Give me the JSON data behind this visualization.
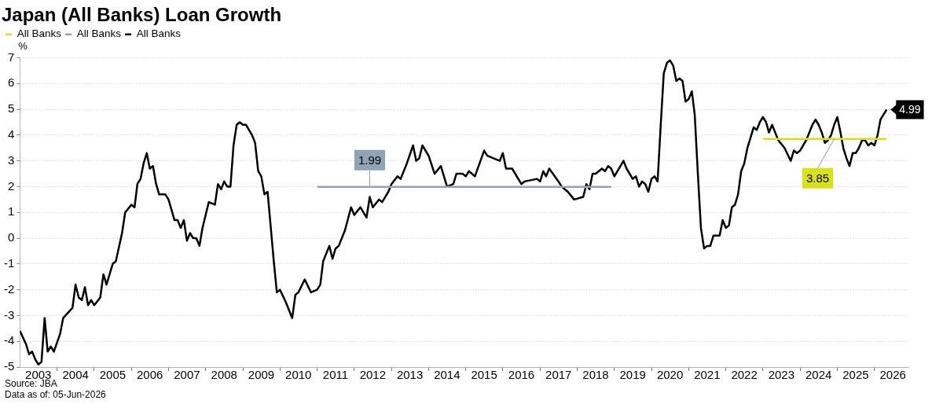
{
  "chart_data": {
    "type": "line",
    "title": "Japan (All Banks) Loan Growth",
    "ylabel": "%",
    "legend": "top left",
    "grid": "y",
    "xlim": [
      "2003-01-01",
      "2026-12-01"
    ],
    "xticks": [
      {
        "value": "2003-07-01",
        "label": "2003"
      },
      {
        "value": "2004-01-01",
        "label": null
      },
      {
        "value": "2004-07-01",
        "label": "2004"
      },
      {
        "value": "2005-01-01",
        "label": null
      },
      {
        "value": "2005-07-01",
        "label": "2005"
      },
      {
        "value": "2006-01-01",
        "label": null
      },
      {
        "value": "2006-07-01",
        "label": "2006"
      },
      {
        "value": "2007-01-01",
        "label": null
      },
      {
        "value": "2007-07-01",
        "label": "2007"
      },
      {
        "value": "2008-01-01",
        "label": null
      },
      {
        "value": "2008-07-01",
        "label": "2008"
      },
      {
        "value": "2009-01-01",
        "label": null
      },
      {
        "value": "2009-07-01",
        "label": "2009"
      },
      {
        "value": "2010-01-01",
        "label": null
      },
      {
        "value": "2010-07-01",
        "label": "2010"
      },
      {
        "value": "2011-01-01",
        "label": null
      },
      {
        "value": "2011-07-01",
        "label": "2011"
      },
      {
        "value": "2012-01-01",
        "label": null
      },
      {
        "value": "2012-07-01",
        "label": "2012"
      },
      {
        "value": "2013-01-01",
        "label": null
      },
      {
        "value": "2013-07-01",
        "label": "2013"
      },
      {
        "value": "2014-01-01",
        "label": null
      },
      {
        "value": "2014-07-01",
        "label": "2014"
      },
      {
        "value": "2015-01-01",
        "label": null
      },
      {
        "value": "2015-07-01",
        "label": "2015"
      },
      {
        "value": "2016-01-01",
        "label": null
      },
      {
        "value": "2016-07-01",
        "label": "2016"
      },
      {
        "value": "2017-01-01",
        "label": null
      },
      {
        "value": "2017-07-01",
        "label": "2017"
      },
      {
        "value": "2018-01-01",
        "label": null
      },
      {
        "value": "2018-07-01",
        "label": "2018"
      },
      {
        "value": "2019-01-01",
        "label": null
      },
      {
        "value": "2019-07-01",
        "label": "2019"
      },
      {
        "value": "2020-01-01",
        "label": null
      },
      {
        "value": "2020-07-01",
        "label": "2020"
      },
      {
        "value": "2021-01-01",
        "label": null
      },
      {
        "value": "2021-07-01",
        "label": "2021"
      },
      {
        "value": "2022-01-01",
        "label": null
      },
      {
        "value": "2022-07-01",
        "label": "2022"
      },
      {
        "value": "2023-01-01",
        "label": null
      },
      {
        "value": "2023-07-01",
        "label": "2023"
      },
      {
        "value": "2024-01-01",
        "label": null
      },
      {
        "value": "2024-07-01",
        "label": "2024"
      },
      {
        "value": "2025-01-01",
        "label": null
      },
      {
        "value": "2025-07-01",
        "label": "2025"
      },
      {
        "value": "2026-01-01",
        "label": null
      },
      {
        "value": "2026-07-01",
        "label": "2026"
      }
    ],
    "ylim": [
      -5,
      7
    ],
    "yticks": [
      -5,
      -4,
      -3,
      -2,
      -1,
      0,
      1,
      2,
      3,
      4,
      5,
      6,
      7
    ],
    "series": [
      {
        "name": "All Banks",
        "color": "#d8e21a",
        "x": [
          "2023-01",
          "2024-12",
          "2026-05"
        ],
        "values": [
          3.85,
          3.85,
          3.85
        ],
        "value_labels": [
          null,
          "3.85",
          null
        ]
      },
      {
        "name": "All Banks",
        "color": "#8fa5b6",
        "x": [
          "2011-01",
          "2012-06",
          "2018-12"
        ],
        "values": [
          1.99,
          1.99,
          1.99
        ],
        "value_labels": [
          null,
          "1.99",
          null
        ]
      },
      {
        "name": "All Banks",
        "color": "#000000",
        "x": [
          "2003-01",
          "2003-03",
          "2003-04",
          "2003-05",
          "2003-06",
          "2003-07",
          "2003-08",
          "2003-09",
          "2003-10",
          "2003-11",
          "2003-12",
          "2004-02",
          "2004-03",
          "2004-06",
          "2004-07",
          "2004-08",
          "2004-09",
          "2004-10",
          "2004-11",
          "2004-12",
          "2005-01",
          "2005-03",
          "2005-04",
          "2005-05",
          "2005-06",
          "2005-07",
          "2005-08",
          "2005-10",
          "2005-11",
          "2006-01",
          "2006-02",
          "2006-03",
          "2006-04",
          "2006-05",
          "2006-06",
          "2006-07",
          "2006-08",
          "2006-09",
          "2006-10",
          "2006-12",
          "2007-01",
          "2007-03",
          "2007-04",
          "2007-05",
          "2007-06",
          "2007-07",
          "2007-08",
          "2007-09",
          "2007-10",
          "2007-11",
          "2007-12",
          "2008-01",
          "2008-02",
          "2008-04",
          "2008-05",
          "2008-06",
          "2008-07",
          "2008-08",
          "2008-09",
          "2008-10",
          "2008-11",
          "2008-12",
          "2009-01",
          "2009-02",
          "2009-04",
          "2009-05",
          "2009-06",
          "2009-07",
          "2009-08",
          "2009-09",
          "2009-11",
          "2009-12",
          "2010-01",
          "2010-03",
          "2010-05",
          "2010-06",
          "2010-07",
          "2010-09",
          "2010-11",
          "2011-01",
          "2011-02",
          "2011-03",
          "2011-05",
          "2011-06",
          "2011-07",
          "2011-08",
          "2011-10",
          "2011-12",
          "2012-01",
          "2012-03",
          "2012-05",
          "2012-06",
          "2012-07",
          "2012-09",
          "2012-10",
          "2012-12",
          "2013-01",
          "2013-03",
          "2013-04",
          "2013-06",
          "2013-08",
          "2013-09",
          "2013-10",
          "2013-11",
          "2014-01",
          "2014-03",
          "2014-05",
          "2014-07",
          "2014-09",
          "2014-10",
          "2014-12",
          "2015-01",
          "2015-02",
          "2015-04",
          "2015-07",
          "2015-08",
          "2015-12",
          "2016-01",
          "2016-02",
          "2016-04",
          "2016-07",
          "2016-08",
          "2016-12",
          "2017-01",
          "2017-02",
          "2017-03",
          "2017-04",
          "2017-07",
          "2017-08",
          "2017-10",
          "2017-12",
          "2018-03",
          "2018-04",
          "2018-05",
          "2018-06",
          "2018-07",
          "2018-09",
          "2018-10",
          "2018-11",
          "2018-12",
          "2019-01",
          "2019-04",
          "2019-05",
          "2019-07",
          "2019-08",
          "2019-09",
          "2019-10",
          "2019-11",
          "2019-12",
          "2020-01",
          "2020-02",
          "2020-03",
          "2020-04",
          "2020-05",
          "2020-06",
          "2020-07",
          "2020-08",
          "2020-09",
          "2020-10",
          "2020-11",
          "2020-12",
          "2021-01",
          "2021-02",
          "2021-03",
          "2021-04",
          "2021-05",
          "2021-06",
          "2021-07",
          "2021-08",
          "2021-09",
          "2021-11",
          "2021-12",
          "2022-01",
          "2022-02",
          "2022-03",
          "2022-04",
          "2022-05",
          "2022-06",
          "2022-07",
          "2022-08",
          "2022-09",
          "2022-10",
          "2022-11",
          "2022-12",
          "2023-01",
          "2023-02",
          "2023-03",
          "2023-04",
          "2023-05",
          "2023-06",
          "2023-08",
          "2023-10",
          "2023-11",
          "2023-12",
          "2024-01",
          "2024-03",
          "2024-04",
          "2024-05",
          "2024-06",
          "2024-07",
          "2024-08",
          "2024-09",
          "2024-10",
          "2024-11",
          "2024-12",
          "2025-01",
          "2025-02",
          "2025-03",
          "2025-04",
          "2025-05",
          "2025-06",
          "2025-07",
          "2025-08",
          "2025-09",
          "2025-10",
          "2025-11",
          "2025-12",
          "2026-01",
          "2026-02",
          "2026-03",
          "2026-04",
          "2026-05"
        ],
        "values": [
          -3.6,
          -4.1,
          -4.5,
          -4.4,
          -4.7,
          -4.9,
          -4.8,
          -3.1,
          -4.4,
          -4.2,
          -4.4,
          -3.7,
          -3.1,
          -2.7,
          -1.8,
          -2.3,
          -2.4,
          -1.9,
          -2.6,
          -2.4,
          -2.6,
          -2.3,
          -1.4,
          -1.8,
          -1.4,
          -1.0,
          -0.9,
          0.2,
          1.0,
          1.3,
          1.2,
          2.1,
          2.3,
          2.9,
          3.3,
          2.7,
          2.8,
          2.1,
          1.7,
          1.7,
          1.5,
          0.7,
          0.7,
          0.4,
          0.7,
          -0.1,
          0.2,
          0.0,
          0.0,
          -0.3,
          0.4,
          0.9,
          1.4,
          1.3,
          2.1,
          1.9,
          2.2,
          2.0,
          2.0,
          3.6,
          4.4,
          4.5,
          4.4,
          4.4,
          4.0,
          3.7,
          2.6,
          2.4,
          1.7,
          1.8,
          -0.9,
          -2.1,
          -2.0,
          -2.5,
          -3.1,
          -2.2,
          -2.1,
          -1.6,
          -2.1,
          -2.0,
          -1.8,
          -0.9,
          -0.3,
          -0.8,
          -0.4,
          -0.3,
          0.3,
          1.2,
          0.9,
          1.2,
          0.8,
          1.6,
          1.2,
          1.5,
          1.4,
          1.8,
          2.1,
          2.4,
          2.3,
          2.9,
          3.6,
          3.0,
          3.1,
          3.6,
          3.2,
          2.5,
          2.8,
          2.0,
          2.1,
          2.5,
          2.5,
          2.4,
          2.6,
          2.4,
          3.4,
          3.2,
          3.0,
          3.3,
          2.7,
          2.7,
          2.1,
          2.2,
          2.3,
          2.2,
          2.6,
          2.4,
          2.7,
          2.2,
          2.0,
          1.8,
          1.5,
          1.6,
          2.1,
          1.9,
          2.5,
          2.5,
          2.7,
          2.6,
          2.8,
          2.7,
          2.4,
          3.0,
          2.7,
          2.3,
          2.4,
          2.0,
          2.2,
          2.1,
          1.8,
          2.3,
          2.4,
          2.2,
          4.4,
          6.4,
          6.8,
          6.9,
          6.7,
          6.1,
          6.2,
          6.1,
          5.3,
          5.4,
          5.7,
          4.8,
          2.5,
          0.4,
          -0.4,
          -0.3,
          -0.3,
          0.1,
          0.1,
          0.7,
          0.4,
          0.5,
          1.2,
          1.3,
          1.7,
          2.6,
          2.9,
          3.5,
          3.9,
          4.3,
          4.2,
          4.5,
          4.7,
          4.5,
          4.1,
          4.4,
          4.1,
          3.8,
          3.5,
          3.0,
          3.4,
          3.3,
          3.4,
          3.8,
          4.1,
          4.4,
          4.6,
          4.4,
          4.1,
          3.7,
          3.8,
          4.0,
          4.4,
          4.7,
          4.1,
          3.5,
          3.1,
          2.8,
          3.3,
          3.3,
          3.5,
          3.8,
          3.8,
          3.6,
          3.7,
          3.6,
          4.0,
          4.6,
          4.8,
          4.99
        ],
        "value_labels": [
          null,
          null,
          null,
          null,
          null,
          null,
          null,
          null,
          null,
          null,
          null,
          null,
          null,
          null,
          null,
          null,
          null,
          null,
          null,
          null,
          null,
          null,
          null,
          null,
          null,
          null,
          null,
          null,
          null,
          null,
          null,
          null,
          null,
          null,
          null,
          null,
          null,
          null,
          null,
          null,
          null,
          null,
          null,
          null,
          null,
          null,
          null,
          null,
          null,
          null,
          null,
          null,
          null,
          null,
          null,
          null,
          null,
          null,
          null,
          null,
          null,
          null,
          null,
          null,
          null,
          null,
          null,
          null,
          null,
          null,
          null,
          null,
          null,
          null,
          null,
          null,
          null,
          null,
          null,
          null,
          null,
          null,
          null,
          null,
          null,
          null,
          null,
          null,
          null,
          null,
          null,
          null,
          null,
          null,
          null,
          null,
          null,
          null,
          null,
          null,
          null,
          null,
          null,
          null,
          null,
          null,
          null,
          null,
          null,
          null,
          null,
          null,
          null,
          null,
          null,
          null,
          null,
          null,
          null,
          null,
          null,
          null,
          null,
          null,
          null,
          null,
          null,
          null,
          null,
          null,
          null,
          null,
          null,
          null,
          null,
          null,
          null,
          null,
          null,
          null,
          null,
          null,
          null,
          null,
          null,
          null,
          null,
          null,
          null,
          null,
          null,
          null,
          null,
          null,
          null,
          null,
          null,
          null,
          null,
          null,
          null,
          null,
          null,
          null,
          null,
          null,
          null,
          null,
          null,
          null,
          null,
          null,
          null,
          null,
          null,
          null,
          null,
          null,
          null,
          null,
          null,
          null,
          null,
          null,
          null,
          null,
          null,
          null,
          null,
          null,
          null,
          null,
          null,
          null,
          null,
          null,
          null,
          null,
          null,
          null,
          null,
          null,
          null,
          null,
          null,
          null,
          null,
          null,
          null,
          null,
          null,
          null,
          null,
          null,
          null,
          null,
          null,
          null,
          null,
          null,
          null,
          "4.99"
        ]
      }
    ],
    "annotations": [
      "Source: JBA",
      "Data as of: 05-Jun-2026"
    ]
  }
}
